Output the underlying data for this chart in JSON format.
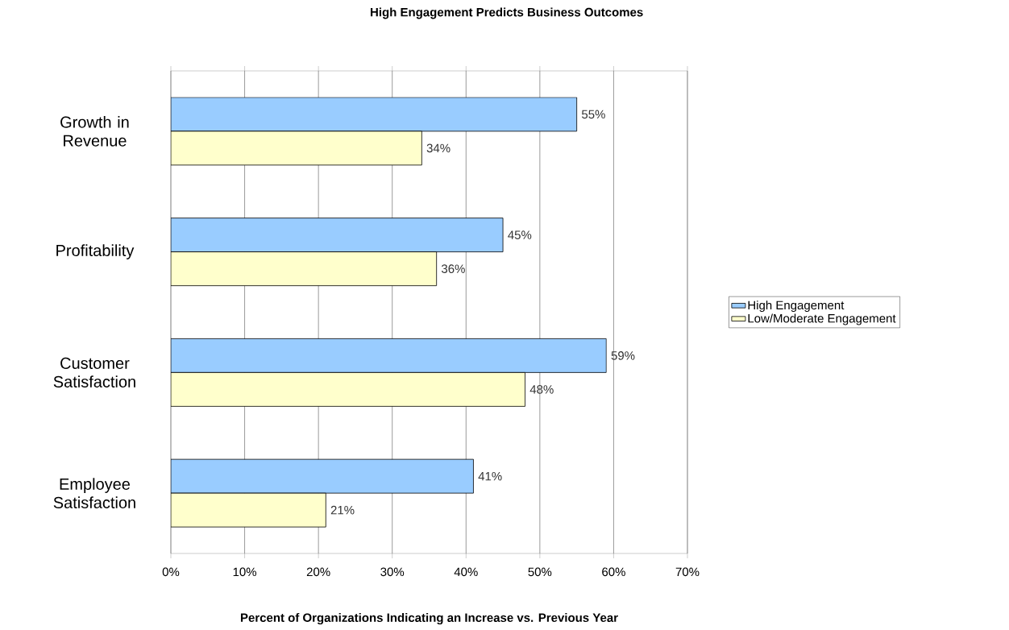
{
  "chart_data": {
    "type": "bar",
    "orientation": "horizontal",
    "title": "High Engagement Predicts Business Outcomes",
    "xlabel": "Percent of Organizations Indicating an Increase vs. Previous Year",
    "categories": [
      "Growth in Revenue",
      "Profitability",
      "Customer Satisfaction",
      "Employee Satisfaction"
    ],
    "series": [
      {
        "name": "High Engagement",
        "color": "#99ccff",
        "values": [
          55,
          45,
          59,
          41
        ],
        "value_labels": [
          "55%",
          "45%",
          "59%",
          "41%"
        ]
      },
      {
        "name": "Low/Moderate Engagement",
        "color": "#ffffcc",
        "values": [
          34,
          36,
          48,
          21
        ],
        "value_labels": [
          "34%",
          "36%",
          "48%",
          "21%"
        ]
      }
    ],
    "xlim": [
      0,
      70
    ],
    "xticks": [
      {
        "value": 0,
        "label": "0%"
      },
      {
        "value": 10,
        "label": "10%"
      },
      {
        "value": 20,
        "label": "20%"
      },
      {
        "value": 30,
        "label": "30%"
      },
      {
        "value": 40,
        "label": "40%"
      },
      {
        "value": 50,
        "label": "50%"
      },
      {
        "value": 60,
        "label": "60%"
      },
      {
        "value": 70,
        "label": "70%"
      }
    ],
    "grid": "x",
    "legend": "right"
  }
}
